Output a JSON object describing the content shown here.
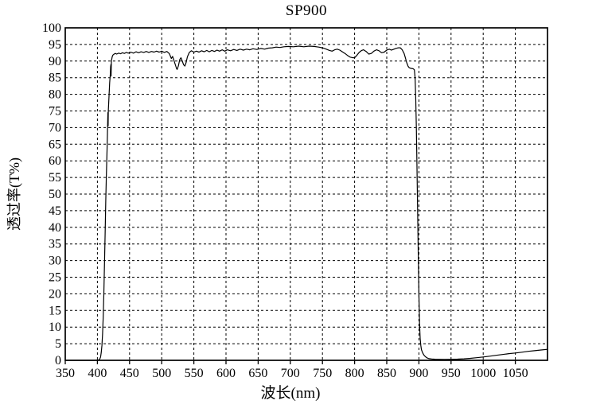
{
  "chart_data": {
    "type": "line",
    "title": "SP900",
    "xlabel": "波长(nm)",
    "ylabel": "透过率(T%)",
    "xlim": [
      350,
      1100
    ],
    "ylim": [
      0,
      100
    ],
    "x_ticks": [
      350,
      400,
      450,
      500,
      550,
      600,
      650,
      700,
      750,
      800,
      850,
      900,
      950,
      1000,
      1050
    ],
    "y_ticks": [
      0,
      5,
      10,
      15,
      20,
      25,
      30,
      35,
      40,
      45,
      50,
      55,
      60,
      65,
      70,
      75,
      80,
      85,
      90,
      95,
      100
    ],
    "grid": "dashed",
    "background_color": "#ffffff",
    "axis_color": "#000000",
    "line_color": "#000000",
    "series": [
      {
        "name": "SP900",
        "points": [
          [
            350,
            0
          ],
          [
            395,
            0
          ],
          [
            402,
            0.1
          ],
          [
            404,
            0.5
          ],
          [
            405,
            1
          ],
          [
            406,
            2.3
          ],
          [
            407,
            4.5
          ],
          [
            408,
            8
          ],
          [
            409,
            13
          ],
          [
            410,
            20
          ],
          [
            411,
            29
          ],
          [
            412,
            38
          ],
          [
            413,
            48
          ],
          [
            414,
            56
          ],
          [
            415,
            63
          ],
          [
            415.6,
            68
          ],
          [
            416,
            71.5
          ],
          [
            416.3,
            74.5
          ],
          [
            416.7,
            70.5
          ],
          [
            417,
            75
          ],
          [
            417.6,
            77.5
          ],
          [
            418.2,
            80
          ],
          [
            419,
            83.5
          ],
          [
            420,
            86
          ],
          [
            420.6,
            88.3
          ],
          [
            421,
            89
          ],
          [
            421.3,
            85.5
          ],
          [
            421.7,
            89.3
          ],
          [
            422,
            90.3
          ],
          [
            423,
            91.3
          ],
          [
            424,
            91.8
          ],
          [
            426,
            92.1
          ],
          [
            428,
            92.3
          ],
          [
            430,
            92.1
          ],
          [
            433,
            92.4
          ],
          [
            436,
            92.2
          ],
          [
            439,
            92.5
          ],
          [
            442,
            92.3
          ],
          [
            445,
            92.6
          ],
          [
            448,
            92.4
          ],
          [
            452,
            92.7
          ],
          [
            456,
            92.4
          ],
          [
            460,
            92.8
          ],
          [
            464,
            92.5
          ],
          [
            468,
            92.8
          ],
          [
            472,
            92.6
          ],
          [
            476,
            92.9
          ],
          [
            480,
            92.6
          ],
          [
            484,
            92.9
          ],
          [
            488,
            92.7
          ],
          [
            492,
            93
          ],
          [
            496,
            92.7
          ],
          [
            500,
            93
          ],
          [
            504,
            92.6
          ],
          [
            508,
            92.9
          ],
          [
            512,
            92.2
          ],
          [
            515,
            90.8
          ],
          [
            517,
            91.4
          ],
          [
            519,
            90.2
          ],
          [
            521,
            89
          ],
          [
            523,
            87.8
          ],
          [
            524,
            87.5
          ],
          [
            526,
            88.6
          ],
          [
            528,
            90.4
          ],
          [
            530,
            91
          ],
          [
            532,
            90
          ],
          [
            534,
            88.9
          ],
          [
            536,
            88.5
          ],
          [
            538,
            89.6
          ],
          [
            540,
            91.3
          ],
          [
            543,
            92.6
          ],
          [
            546,
            93.1
          ],
          [
            550,
            92.7
          ],
          [
            554,
            93
          ],
          [
            558,
            92.7
          ],
          [
            562,
            93.1
          ],
          [
            566,
            92.8
          ],
          [
            570,
            93.2
          ],
          [
            574,
            92.8
          ],
          [
            578,
            93.2
          ],
          [
            582,
            92.9
          ],
          [
            586,
            93.3
          ],
          [
            590,
            93
          ],
          [
            594,
            93.4
          ],
          [
            598,
            93
          ],
          [
            602,
            93.4
          ],
          [
            607,
            93.1
          ],
          [
            612,
            93.5
          ],
          [
            617,
            93.2
          ],
          [
            622,
            93.6
          ],
          [
            627,
            93.3
          ],
          [
            632,
            93.6
          ],
          [
            637,
            93.4
          ],
          [
            642,
            93.7
          ],
          [
            648,
            93.5
          ],
          [
            654,
            93.8
          ],
          [
            660,
            93.6
          ],
          [
            666,
            93.9
          ],
          [
            672,
            94
          ],
          [
            678,
            94.2
          ],
          [
            684,
            94.1
          ],
          [
            690,
            94.3
          ],
          [
            697,
            94.4
          ],
          [
            705,
            94.3
          ],
          [
            713,
            94.5
          ],
          [
            721,
            94.3
          ],
          [
            729,
            94.5
          ],
          [
            737,
            94.4
          ],
          [
            744,
            94.2
          ],
          [
            750,
            94
          ],
          [
            756,
            93.6
          ],
          [
            761,
            93.2
          ],
          [
            765,
            93
          ],
          [
            769,
            93.4
          ],
          [
            773,
            93.6
          ],
          [
            777,
            93.3
          ],
          [
            781,
            92.8
          ],
          [
            785,
            92.3
          ],
          [
            789,
            91.7
          ],
          [
            793,
            91.2
          ],
          [
            797,
            91
          ],
          [
            800,
            91
          ],
          [
            803,
            91.6
          ],
          [
            807,
            92.6
          ],
          [
            811,
            93.2
          ],
          [
            814,
            93.4
          ],
          [
            818,
            92.9
          ],
          [
            822,
            92.1
          ],
          [
            826,
            92.3
          ],
          [
            830,
            93
          ],
          [
            834,
            93.4
          ],
          [
            838,
            93.1
          ],
          [
            842,
            92.5
          ],
          [
            846,
            92.7
          ],
          [
            850,
            93.3
          ],
          [
            854,
            93.6
          ],
          [
            857,
            93.3
          ],
          [
            860,
            93.5
          ],
          [
            864,
            93.8
          ],
          [
            868,
            94
          ],
          [
            871,
            94
          ],
          [
            874,
            93.4
          ],
          [
            877,
            92.3
          ],
          [
            879,
            91
          ],
          [
            881,
            89.6
          ],
          [
            883,
            88.5
          ],
          [
            885,
            88
          ],
          [
            888,
            87.8
          ],
          [
            891,
            87.7
          ],
          [
            893,
            87.4
          ],
          [
            894,
            85
          ],
          [
            895,
            79
          ],
          [
            896,
            70
          ],
          [
            897,
            58
          ],
          [
            898,
            45
          ],
          [
            899,
            32
          ],
          [
            900,
            20
          ],
          [
            901,
            11
          ],
          [
            902,
            6.5
          ],
          [
            903,
            4.5
          ],
          [
            904,
            3.2
          ],
          [
            906,
            2.2
          ],
          [
            908,
            1.5
          ],
          [
            910,
            1.1
          ],
          [
            913,
            0.7
          ],
          [
            916,
            0.5
          ],
          [
            920,
            0.4
          ],
          [
            925,
            0.33
          ],
          [
            930,
            0.3
          ],
          [
            940,
            0.28
          ],
          [
            950,
            0.3
          ],
          [
            960,
            0.35
          ],
          [
            970,
            0.45
          ],
          [
            980,
            0.6
          ],
          [
            990,
            0.8
          ],
          [
            1000,
            1
          ],
          [
            1010,
            1.25
          ],
          [
            1020,
            1.5
          ],
          [
            1030,
            1.75
          ],
          [
            1040,
            2
          ],
          [
            1050,
            2.2
          ],
          [
            1060,
            2.45
          ],
          [
            1070,
            2.7
          ],
          [
            1080,
            2.9
          ],
          [
            1090,
            3.1
          ],
          [
            1100,
            3.3
          ]
        ]
      }
    ]
  }
}
